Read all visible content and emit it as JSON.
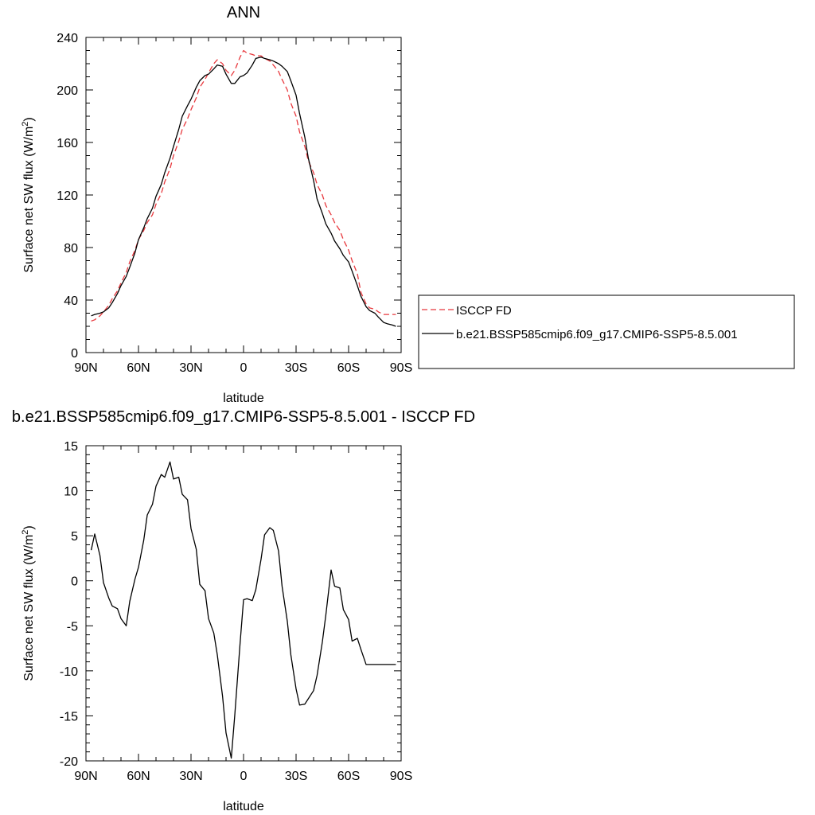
{
  "chart_data": [
    {
      "type": "line",
      "title": "ANN",
      "xlabel": "latitude",
      "ylabel_main": "Surface net SW flux (W/m",
      "ylabel_sup": "2",
      "ylabel_end": ")",
      "xlim": [
        90,
        -90
      ],
      "ylim": [
        0,
        240
      ],
      "xticks": [
        90,
        60,
        30,
        0,
        -30,
        -60,
        -90
      ],
      "xtick_labels": [
        "90N",
        "60N",
        "30N",
        "0",
        "30S",
        "60S",
        "90S"
      ],
      "yticks": [
        0,
        40,
        80,
        120,
        160,
        200,
        240
      ],
      "ytick_labels": [
        "0",
        "40",
        "80",
        "120",
        "160",
        "200",
        "240"
      ],
      "legend_position": "right",
      "series": [
        {
          "name": "ISCCP FD",
          "color": "#e8383d",
          "dash": "dashed",
          "x": [
            87,
            85,
            82,
            80,
            77,
            75,
            72,
            70,
            67,
            65,
            62,
            60,
            57,
            55,
            52,
            50,
            47,
            45,
            42,
            40,
            37,
            35,
            32,
            30,
            27,
            25,
            22,
            20,
            17,
            15,
            12,
            10,
            7,
            5,
            2,
            0,
            -2,
            -5,
            -7,
            -10,
            -12,
            -15,
            -17,
            -20,
            -22,
            -25,
            -27,
            -30,
            -32,
            -35,
            -37,
            -40,
            -42,
            -45,
            -47,
            -50,
            -52,
            -55,
            -57,
            -60,
            -62,
            -65,
            -67,
            -70,
            -72,
            -75,
            -77,
            -80,
            -82,
            -85,
            -87
          ],
          "y": [
            24,
            25,
            28,
            31,
            36,
            41,
            47,
            53,
            61,
            69,
            78,
            86,
            93,
            99,
            105,
            113,
            121,
            130,
            140,
            150,
            161,
            170,
            178,
            185,
            194,
            202,
            208,
            213,
            220,
            223,
            220,
            215,
            211,
            215,
            225,
            230,
            228,
            227,
            226,
            226,
            224,
            222,
            219,
            214,
            208,
            200,
            190,
            180,
            168,
            157,
            146,
            137,
            128,
            120,
            112,
            105,
            99,
            93,
            86,
            78,
            70,
            60,
            46,
            37,
            34,
            33,
            31,
            29,
            29,
            29,
            29
          ]
        },
        {
          "name": "b.e21.BSSP585cmip6.f09_g17.CMIP6-SSP5-8.5.001",
          "color": "#000000",
          "dash": "solid",
          "x": [
            87,
            85,
            82,
            80,
            77,
            75,
            72,
            70,
            67,
            65,
            62,
            60,
            57,
            55,
            52,
            50,
            47,
            45,
            42,
            40,
            37,
            35,
            32,
            30,
            27,
            25,
            22,
            20,
            17,
            15,
            12,
            10,
            7,
            5,
            2,
            0,
            -2,
            -5,
            -7,
            -10,
            -12,
            -15,
            -17,
            -20,
            -22,
            -25,
            -27,
            -30,
            -32,
            -35,
            -37,
            -40,
            -42,
            -45,
            -47,
            -50,
            -52,
            -55,
            -57,
            -60,
            -62,
            -65,
            -67,
            -70,
            -72,
            -75,
            -77,
            -80,
            -82,
            -85,
            -87
          ],
          "y": [
            28,
            29,
            30,
            31,
            34,
            38,
            45,
            51,
            58,
            65,
            76,
            86,
            95,
            102,
            110,
            119,
            128,
            137,
            148,
            157,
            170,
            180,
            188,
            193,
            202,
            207,
            211,
            212,
            216,
            219,
            218,
            212,
            205,
            205,
            210,
            211,
            213,
            219,
            224,
            225,
            224,
            223,
            222,
            220,
            218,
            214,
            207,
            196,
            182,
            164,
            148,
            131,
            117,
            106,
            98,
            91,
            85,
            79,
            74,
            69,
            62,
            51,
            43,
            35,
            32,
            30,
            27,
            23,
            22,
            21,
            20
          ]
        }
      ]
    },
    {
      "type": "line",
      "title": "b.e21.BSSP585cmip6.f09_g17.CMIP6-SSP5-8.5.001 - ISCCP FD",
      "xlabel": "latitude",
      "ylabel_main": "Surface net SW flux (W/m",
      "ylabel_sup": "2",
      "ylabel_end": ")",
      "xlim": [
        90,
        -90
      ],
      "ylim": [
        -20,
        15
      ],
      "xticks": [
        90,
        60,
        30,
        0,
        -30,
        -60,
        -90
      ],
      "xtick_labels": [
        "90N",
        "60N",
        "30N",
        "0",
        "30S",
        "60S",
        "90S"
      ],
      "yticks": [
        -20,
        -15,
        -10,
        -5,
        0,
        5,
        10,
        15
      ],
      "ytick_labels": [
        "-20",
        "-15",
        "-10",
        "-5",
        "0",
        "5",
        "10",
        "15"
      ],
      "series": [
        {
          "color": "#000000",
          "dash": "solid",
          "x": [
            87,
            85,
            82,
            80,
            77,
            75,
            72,
            70,
            67,
            65,
            62,
            60,
            57,
            55,
            52,
            50,
            47,
            45,
            42,
            40,
            37,
            35,
            32,
            30,
            27,
            25,
            22,
            20,
            17,
            15,
            12,
            10,
            7,
            5,
            2,
            0,
            -2,
            -5,
            -7,
            -10,
            -12,
            -15,
            -17,
            -20,
            -22,
            -25,
            -27,
            -30,
            -32,
            -35,
            -37,
            -40,
            -42,
            -45,
            -47,
            -50,
            -52,
            -55,
            -57,
            -60,
            -62,
            -65,
            -67,
            -70,
            -72,
            -75,
            -77,
            -80,
            -82,
            -85,
            -87
          ],
          "y": [
            3.4,
            5.2,
            2.8,
            -0.2,
            -1.9,
            -2.8,
            -3.1,
            -4.2,
            -5.0,
            -2.3,
            0.2,
            1.5,
            4.5,
            7.3,
            8.5,
            10.5,
            11.8,
            11.5,
            13.2,
            11.3,
            11.5,
            9.6,
            9.0,
            5.8,
            3.5,
            -0.4,
            -1.1,
            -4.2,
            -5.8,
            -8.2,
            -12.8,
            -16.9,
            -19.7,
            -14.9,
            -7.0,
            -2.1,
            -2.0,
            -2.2,
            -1.0,
            2.4,
            5.1,
            5.9,
            5.6,
            3.3,
            -0.6,
            -4.5,
            -8.2,
            -12.0,
            -13.8,
            -13.7,
            -13.1,
            -12.2,
            -10.5,
            -6.8,
            -3.8,
            1.2,
            -0.6,
            -0.8,
            -3.2,
            -4.3,
            -6.7,
            -6.4,
            -7.6,
            -9.3,
            -9.3,
            -9.3,
            -9.3,
            -9.3,
            -9.3,
            -9.3,
            -9.3
          ]
        }
      ]
    }
  ]
}
